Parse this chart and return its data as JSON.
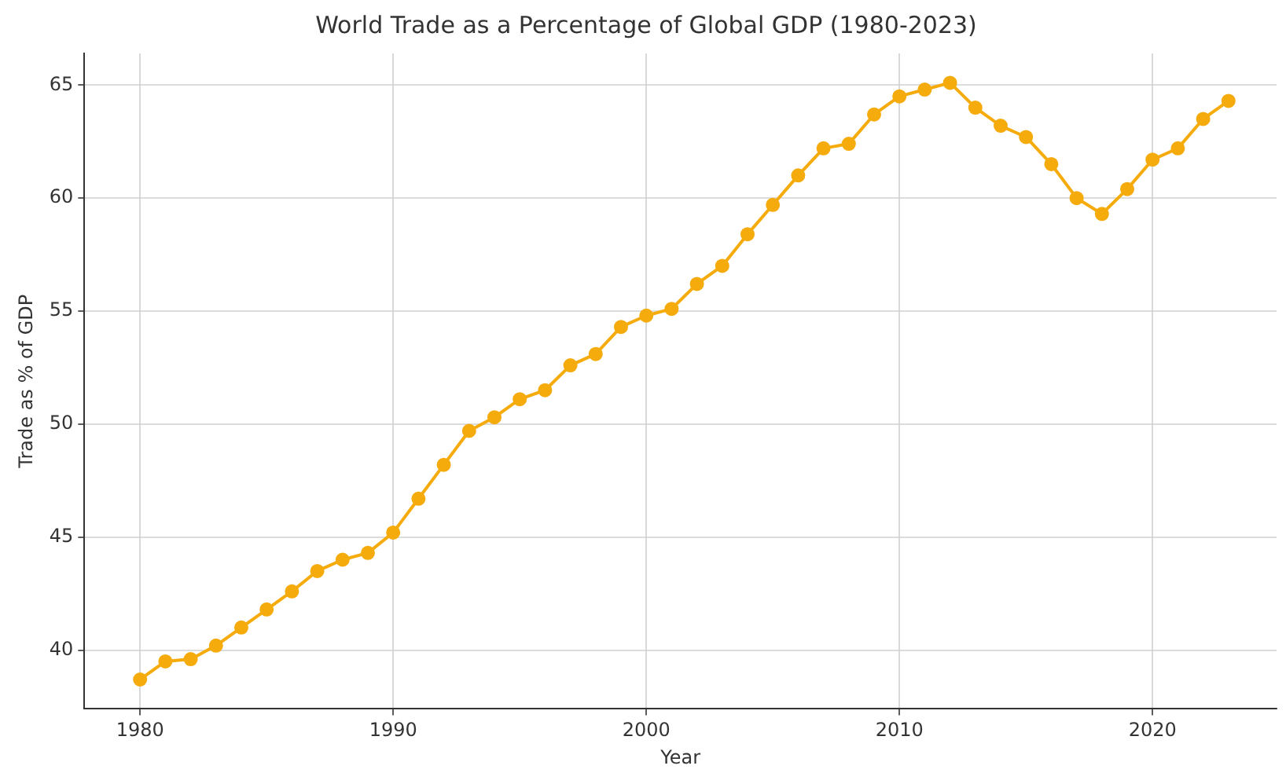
{
  "chart_data": {
    "type": "line",
    "title": "World Trade as a Percentage of Global GDP (1980-2023)",
    "xlabel": "Year",
    "ylabel": "Trade as % of GDP",
    "x": [
      1980,
      1981,
      1982,
      1983,
      1984,
      1985,
      1986,
      1987,
      1988,
      1989,
      1990,
      1991,
      1992,
      1993,
      1994,
      1995,
      1996,
      1997,
      1998,
      1999,
      2000,
      2001,
      2002,
      2003,
      2004,
      2005,
      2006,
      2007,
      2008,
      2009,
      2010,
      2011,
      2012,
      2013,
      2014,
      2015,
      2016,
      2017,
      2018,
      2019,
      2020,
      2021,
      2022,
      2023
    ],
    "series": [
      {
        "color": "#f5ab0c",
        "values": [
          38.7,
          39.5,
          39.6,
          40.2,
          41.0,
          41.8,
          42.6,
          43.5,
          44.0,
          44.3,
          45.2,
          46.7,
          48.2,
          49.7,
          50.3,
          51.1,
          51.5,
          52.6,
          53.1,
          54.3,
          54.8,
          55.1,
          56.2,
          57.0,
          58.4,
          59.7,
          61.0,
          62.2,
          62.4,
          63.7,
          64.5,
          64.8,
          65.1,
          64.0,
          63.2,
          62.7,
          61.5,
          60.0,
          59.3,
          60.4,
          61.7,
          62.2,
          63.5,
          64.3
        ]
      }
    ],
    "xlim": [
      1977.8,
      2024.9
    ],
    "xticks": [
      1980,
      1990,
      2000,
      2010,
      2020
    ],
    "ylim": [
      37.4,
      66.4
    ],
    "yticks": [
      40,
      45,
      50,
      55,
      60,
      65
    ],
    "grid": true,
    "legend": false,
    "marker": "circle",
    "line_style": "solid"
  }
}
